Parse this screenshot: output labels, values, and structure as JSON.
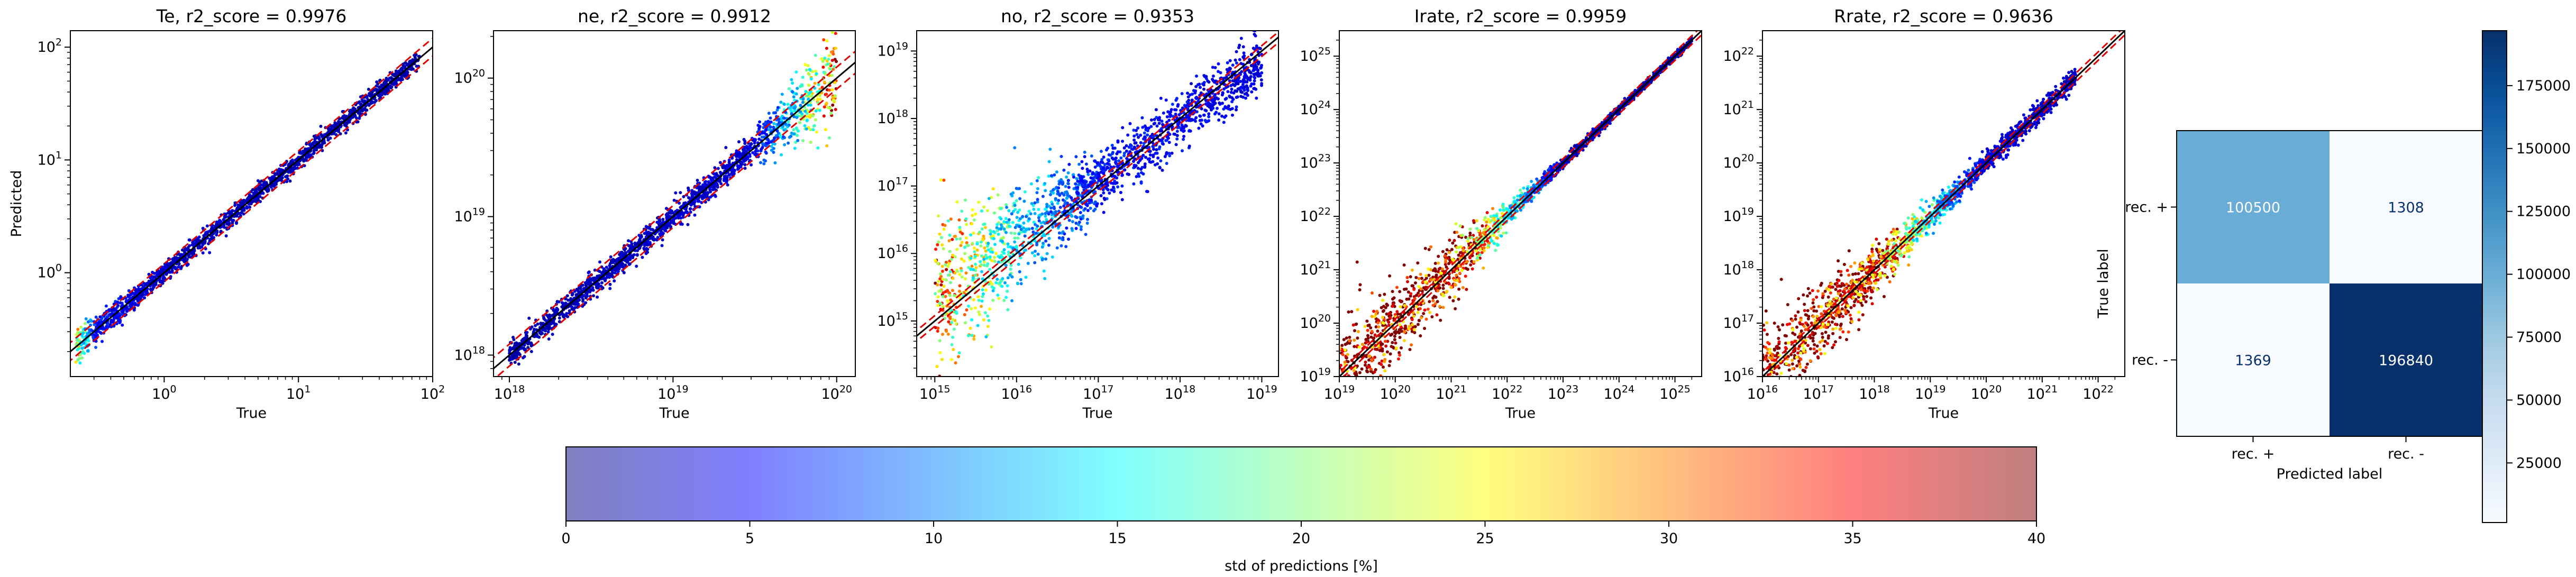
{
  "colors": {
    "ideal_line": "#000000",
    "bound_lines": "#e00000",
    "confusion_low": "#f7fbff",
    "confusion_high": "#08306b"
  },
  "chart_data": [
    {
      "type": "scatter",
      "title": "Te, r2_score = 0.9976",
      "xlabel": "True",
      "ylabel": "Predicted",
      "xscale": "log",
      "yscale": "log",
      "xlim": [
        0.2,
        100
      ],
      "ylim": [
        0.12,
        140
      ],
      "xticks": [
        {
          "v": 1,
          "base": "10",
          "exp": "0"
        },
        {
          "v": 10,
          "base": "10",
          "exp": "1"
        },
        {
          "v": 100,
          "base": "10",
          "exp": "2"
        }
      ],
      "yticks": [
        {
          "v": 1,
          "base": "10",
          "exp": "0"
        },
        {
          "v": 10,
          "base": "10",
          "exp": "1"
        },
        {
          "v": 100,
          "base": "10",
          "exp": "2"
        }
      ],
      "data_range": [
        0.22,
        80
      ],
      "spread": 0.035,
      "bound": 1.2,
      "bands": [
        {
          "x": 0.23,
          "std": 24,
          "spread": 0.09
        },
        {
          "x": 0.3,
          "std": 6,
          "spread": 0.06
        },
        {
          "x": 1,
          "std": 3,
          "spread": 0.04
        },
        {
          "x": 80,
          "std": 2,
          "spread": 0.04
        }
      ],
      "grid": false
    },
    {
      "type": "scatter",
      "title": "ne, r2_score = 0.9912",
      "xlabel": "True",
      "xscale": "log",
      "yscale": "log",
      "xlim": [
        8e+17,
        1.3e+20
      ],
      "ylim": [
        7e+17,
        2.2e+20
      ],
      "xticks": [
        {
          "v": 1e+18,
          "base": "10",
          "exp": "18"
        },
        {
          "v": 1e+19,
          "base": "10",
          "exp": "19"
        },
        {
          "v": 1e+20,
          "base": "10",
          "exp": "20"
        }
      ],
      "yticks": [
        {
          "v": 1e+18,
          "base": "10",
          "exp": "18"
        },
        {
          "v": 1e+19,
          "base": "10",
          "exp": "19"
        },
        {
          "v": 1e+20,
          "base": "10",
          "exp": "20"
        }
      ],
      "data_range": [
        1e+18,
        1e+20
      ],
      "spread": 0.03,
      "bound": 1.2,
      "bands": [
        {
          "x": 1e+18,
          "std": 2,
          "spread": 0.04
        },
        {
          "x": 3e+19,
          "std": 4,
          "spread": 0.05
        },
        {
          "x": 6e+19,
          "std": 16,
          "spread": 0.12
        },
        {
          "x": 1e+20,
          "std": 32,
          "spread": 0.2
        }
      ],
      "grid": false
    },
    {
      "type": "scatter",
      "title": "no, r2_score = 0.9353",
      "xlabel": "True",
      "xscale": "log",
      "yscale": "log",
      "xlim": [
        600000000000000.0,
        1.6e+19
      ],
      "ylim": [
        150000000000000.0,
        2e+19
      ],
      "xticks": [
        {
          "v": 1000000000000000.0,
          "base": "10",
          "exp": "15"
        },
        {
          "v": 1e+16,
          "base": "10",
          "exp": "16"
        },
        {
          "v": 1e+17,
          "base": "10",
          "exp": "17"
        },
        {
          "v": 1e+18,
          "base": "10",
          "exp": "18"
        },
        {
          "v": 1e+19,
          "base": "10",
          "exp": "19"
        }
      ],
      "yticks": [
        {
          "v": 1000000000000000.0,
          "base": "10",
          "exp": "15"
        },
        {
          "v": 1e+16,
          "base": "10",
          "exp": "16"
        },
        {
          "v": 1e+17,
          "base": "10",
          "exp": "17"
        },
        {
          "v": 1e+18,
          "base": "10",
          "exp": "18"
        },
        {
          "v": 1e+19,
          "base": "10",
          "exp": "19"
        }
      ],
      "data_range": [
        1000000000000000.0,
        1e+19
      ],
      "spread": 0.2,
      "bound": 1.2,
      "bands": [
        {
          "x": 1000000000000000.0,
          "std": 30,
          "spread": 0.6,
          "bias": 0.35
        },
        {
          "x": 1e+16,
          "std": 14,
          "spread": 0.4,
          "bias": 0.25
        },
        {
          "x": 1e+17,
          "std": 6,
          "spread": 0.2,
          "bias": 0.05
        },
        {
          "x": 1e+19,
          "std": 4,
          "spread": 0.2,
          "bias": -0.15
        }
      ],
      "grid": false
    },
    {
      "type": "scatter",
      "title": "Irate, r2_score = 0.9959",
      "xlabel": "True",
      "xscale": "log",
      "yscale": "log",
      "xlim": [
        1e+19,
        3e+25
      ],
      "ylim": [
        1e+19,
        3e+25
      ],
      "xticks": [
        {
          "v": 1e+19,
          "base": "10",
          "exp": "19"
        },
        {
          "v": 1e+20,
          "base": "10",
          "exp": "20"
        },
        {
          "v": 1e+21,
          "base": "10",
          "exp": "21"
        },
        {
          "v": 1e+22,
          "base": "10",
          "exp": "22"
        },
        {
          "v": 1e+23,
          "base": "10",
          "exp": "23"
        },
        {
          "v": 1e+24,
          "base": "10",
          "exp": "24"
        },
        {
          "v": 1e+25,
          "base": "10",
          "exp": "25"
        }
      ],
      "yticks": [
        {
          "v": 1e+19,
          "base": "10",
          "exp": "19"
        },
        {
          "v": 1e+20,
          "base": "10",
          "exp": "20"
        },
        {
          "v": 1e+21,
          "base": "10",
          "exp": "21"
        },
        {
          "v": 1e+22,
          "base": "10",
          "exp": "22"
        },
        {
          "v": 1e+23,
          "base": "10",
          "exp": "23"
        },
        {
          "v": 1e+24,
          "base": "10",
          "exp": "24"
        },
        {
          "v": 1e+25,
          "base": "10",
          "exp": "25"
        }
      ],
      "data_range": [
        1e+19,
        2e+25
      ],
      "spread": 0.05,
      "bound": 1.2,
      "bands": [
        {
          "x": 1e+19,
          "std": 40,
          "spread": 0.45
        },
        {
          "x": 1e+21,
          "std": 40,
          "spread": 0.3
        },
        {
          "x": 1e+22,
          "std": 18,
          "spread": 0.12
        },
        {
          "x": 1e+23,
          "std": 3,
          "spread": 0.05
        },
        {
          "x": 2e+25,
          "std": 2,
          "spread": 0.03
        }
      ],
      "grid": false
    },
    {
      "type": "scatter",
      "title": "Rrate, r2_score = 0.9636",
      "xlabel": "True",
      "xscale": "log",
      "yscale": "log",
      "xlim": [
        1e+16,
        3e+22
      ],
      "ylim": [
        1e+16,
        3e+22
      ],
      "xticks": [
        {
          "v": 1e+16,
          "base": "10",
          "exp": "16"
        },
        {
          "v": 1e+17,
          "base": "10",
          "exp": "17"
        },
        {
          "v": 1e+18,
          "base": "10",
          "exp": "18"
        },
        {
          "v": 1e+19,
          "base": "10",
          "exp": "19"
        },
        {
          "v": 1e+20,
          "base": "10",
          "exp": "20"
        },
        {
          "v": 1e+21,
          "base": "10",
          "exp": "21"
        },
        {
          "v": 1e+22,
          "base": "10",
          "exp": "22"
        }
      ],
      "yticks": [
        {
          "v": 1e+16,
          "base": "10",
          "exp": "16"
        },
        {
          "v": 1e+17,
          "base": "10",
          "exp": "17"
        },
        {
          "v": 1e+18,
          "base": "10",
          "exp": "18"
        },
        {
          "v": 1e+19,
          "base": "10",
          "exp": "19"
        },
        {
          "v": 1e+20,
          "base": "10",
          "exp": "20"
        },
        {
          "v": 1e+21,
          "base": "10",
          "exp": "21"
        },
        {
          "v": 1e+22,
          "base": "10",
          "exp": "22"
        }
      ],
      "data_range": [
        1e+16,
        4e+21
      ],
      "spread": 0.08,
      "bound": 1.2,
      "bands": [
        {
          "x": 1e+16,
          "std": 40,
          "spread": 0.45
        },
        {
          "x": 1e+18,
          "std": 38,
          "spread": 0.25
        },
        {
          "x": 1e+19,
          "std": 15,
          "spread": 0.12
        },
        {
          "x": 1e+20,
          "std": 4,
          "spread": 0.1
        },
        {
          "x": 4e+21,
          "std": 3,
          "spread": 0.1
        }
      ],
      "grid": false
    },
    {
      "type": "heatmap",
      "ylabel": "True label",
      "xlabel": "Predicted label",
      "row_labels": [
        "rec. +",
        "rec. -"
      ],
      "col_labels": [
        "rec. +",
        "rec. -"
      ],
      "values": [
        [
          100500,
          1308
        ],
        [
          1369,
          196840
        ]
      ],
      "colorbar": {
        "min": 1308,
        "max": 196840,
        "ticks": [
          25000,
          50000,
          75000,
          100000,
          125000,
          150000,
          175000
        ],
        "tick_labels": [
          "25000",
          "50000",
          "75000",
          "100000",
          "125000",
          "150000",
          "175000"
        ]
      }
    },
    {
      "type": "colorbar",
      "label": "std of predictions [%]",
      "min": 0,
      "max": 40,
      "ticks": [
        0,
        5,
        10,
        15,
        20,
        25,
        30,
        35,
        40
      ],
      "tick_labels": [
        "0",
        "5",
        "10",
        "15",
        "20",
        "25",
        "30",
        "35",
        "40"
      ],
      "alpha": 0.5
    }
  ]
}
